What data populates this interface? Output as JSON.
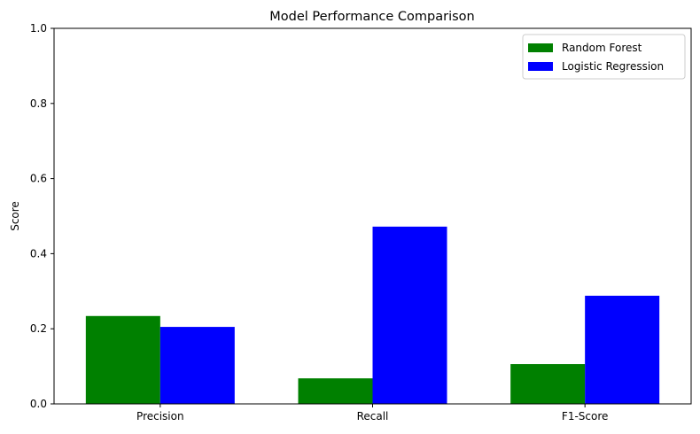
{
  "chart_data": {
    "type": "bar",
    "title": "Model Performance Comparison",
    "xlabel": "",
    "ylabel": "Score",
    "categories": [
      "Precision",
      "Recall",
      "F1-Score"
    ],
    "series": [
      {
        "name": "Random Forest",
        "color": "#008000",
        "values": [
          0.234,
          0.068,
          0.106
        ]
      },
      {
        "name": "Logistic Regression",
        "color": "#0000ff",
        "values": [
          0.205,
          0.472,
          0.288
        ]
      }
    ],
    "ylim": [
      0,
      1.0
    ],
    "yticks": [
      "0.0",
      "0.2",
      "0.4",
      "0.6",
      "0.8",
      "1.0"
    ],
    "grid": false,
    "legend_position": "top-right"
  }
}
